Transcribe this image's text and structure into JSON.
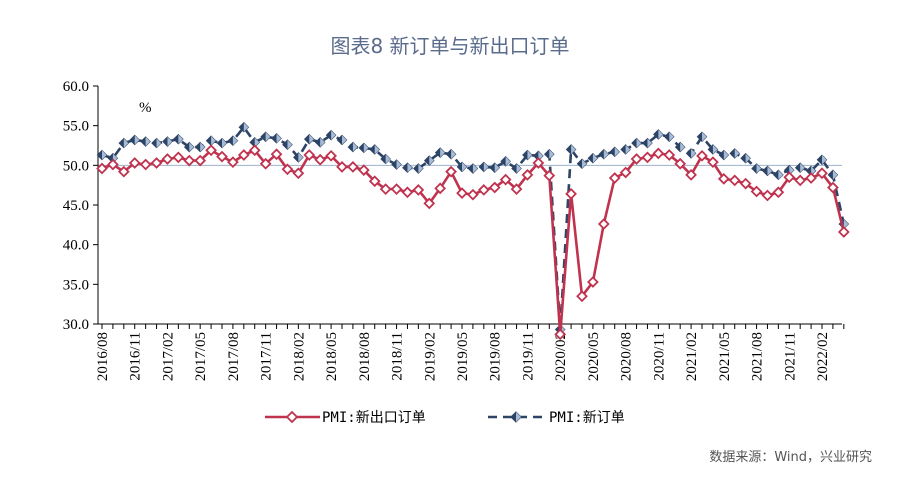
{
  "title": "图表8  新订单与新出口订单",
  "source": "数据来源：Wind，兴业研究",
  "chart_data": {
    "type": "line",
    "unit": "%",
    "ylim": [
      30,
      60
    ],
    "yticks": [
      "30.0",
      "35.0",
      "40.0",
      "45.0",
      "50.0",
      "55.0",
      "60.0"
    ],
    "xtick_labels": [
      "2016/08",
      "2016/11",
      "2017/02",
      "2017/05",
      "2017/08",
      "2017/11",
      "2018/02",
      "2018/05",
      "2018/08",
      "2018/11",
      "2019/02",
      "2019/05",
      "2019/08",
      "2019/11",
      "2020/02",
      "2020/05",
      "2020/08",
      "2020/11",
      "2021/02",
      "2021/05",
      "2021/08",
      "2021/11",
      "2022/02"
    ],
    "x": [
      "2016/08",
      "2016/09",
      "2016/10",
      "2016/11",
      "2016/12",
      "2017/01",
      "2017/02",
      "2017/03",
      "2017/04",
      "2017/05",
      "2017/06",
      "2017/07",
      "2017/08",
      "2017/09",
      "2017/10",
      "2017/11",
      "2017/12",
      "2018/01",
      "2018/02",
      "2018/03",
      "2018/04",
      "2018/05",
      "2018/06",
      "2018/07",
      "2018/08",
      "2018/09",
      "2018/10",
      "2018/11",
      "2018/12",
      "2019/01",
      "2019/02",
      "2019/03",
      "2019/04",
      "2019/05",
      "2019/06",
      "2019/07",
      "2019/08",
      "2019/09",
      "2019/10",
      "2019/11",
      "2019/12",
      "2020/01",
      "2020/02",
      "2020/03",
      "2020/04",
      "2020/05",
      "2020/06",
      "2020/07",
      "2020/08",
      "2020/09",
      "2020/10",
      "2020/11",
      "2020/12",
      "2021/01",
      "2021/02",
      "2021/03",
      "2021/04",
      "2021/05",
      "2021/06",
      "2021/07",
      "2021/08",
      "2021/09",
      "2021/10",
      "2021/11",
      "2021/12",
      "2022/01",
      "2022/02",
      "2022/03",
      "2022/04"
    ],
    "reference_line": 50,
    "series": [
      {
        "name": "PMI:新出口订单",
        "color": "#c0334f",
        "style": "solid",
        "marker": "diamond-open",
        "values": [
          49.6,
          50.1,
          49.2,
          50.3,
          50.1,
          50.3,
          50.8,
          51.0,
          50.6,
          50.6,
          51.9,
          51.1,
          50.4,
          51.3,
          51.9,
          50.2,
          51.4,
          49.5,
          49.0,
          51.3,
          50.7,
          51.2,
          49.8,
          49.8,
          49.4,
          48.0,
          47.0,
          47.0,
          46.6,
          46.9,
          45.2,
          47.1,
          49.2,
          46.5,
          46.3,
          46.9,
          47.2,
          48.2,
          47.0,
          48.8,
          50.3,
          48.7,
          28.7,
          46.4,
          33.5,
          35.3,
          42.6,
          48.4,
          49.1,
          50.8,
          51.0,
          51.5,
          51.3,
          50.2,
          48.8,
          51.2,
          50.4,
          48.3,
          48.1,
          47.7,
          46.7,
          46.2,
          46.6,
          48.5,
          48.1,
          48.4,
          49.0,
          47.2,
          41.6
        ]
      },
      {
        "name": "PMI:新订单",
        "color": "#2d4466",
        "style": "dashed",
        "marker": "diamond-half",
        "values": [
          51.3,
          50.9,
          52.8,
          53.2,
          53.0,
          52.8,
          53.0,
          53.3,
          52.3,
          52.3,
          53.1,
          52.8,
          53.1,
          54.8,
          52.9,
          53.6,
          53.4,
          52.6,
          51.0,
          53.3,
          52.9,
          53.8,
          53.2,
          52.3,
          52.2,
          52.0,
          50.8,
          50.1,
          49.7,
          49.6,
          50.6,
          51.6,
          51.4,
          49.8,
          49.6,
          49.8,
          49.7,
          50.5,
          49.6,
          51.3,
          51.2,
          51.4,
          29.3,
          52.0,
          50.2,
          50.9,
          51.4,
          51.7,
          52.0,
          52.8,
          52.8,
          53.9,
          53.6,
          52.3,
          51.5,
          53.6,
          52.0,
          51.3,
          51.5,
          50.9,
          49.6,
          49.3,
          48.8,
          49.4,
          49.7,
          49.3,
          50.7,
          48.8,
          42.6
        ]
      }
    ]
  },
  "legend": [
    {
      "label": "PMI:新出口订单"
    },
    {
      "label": "PMI:新订单"
    }
  ]
}
